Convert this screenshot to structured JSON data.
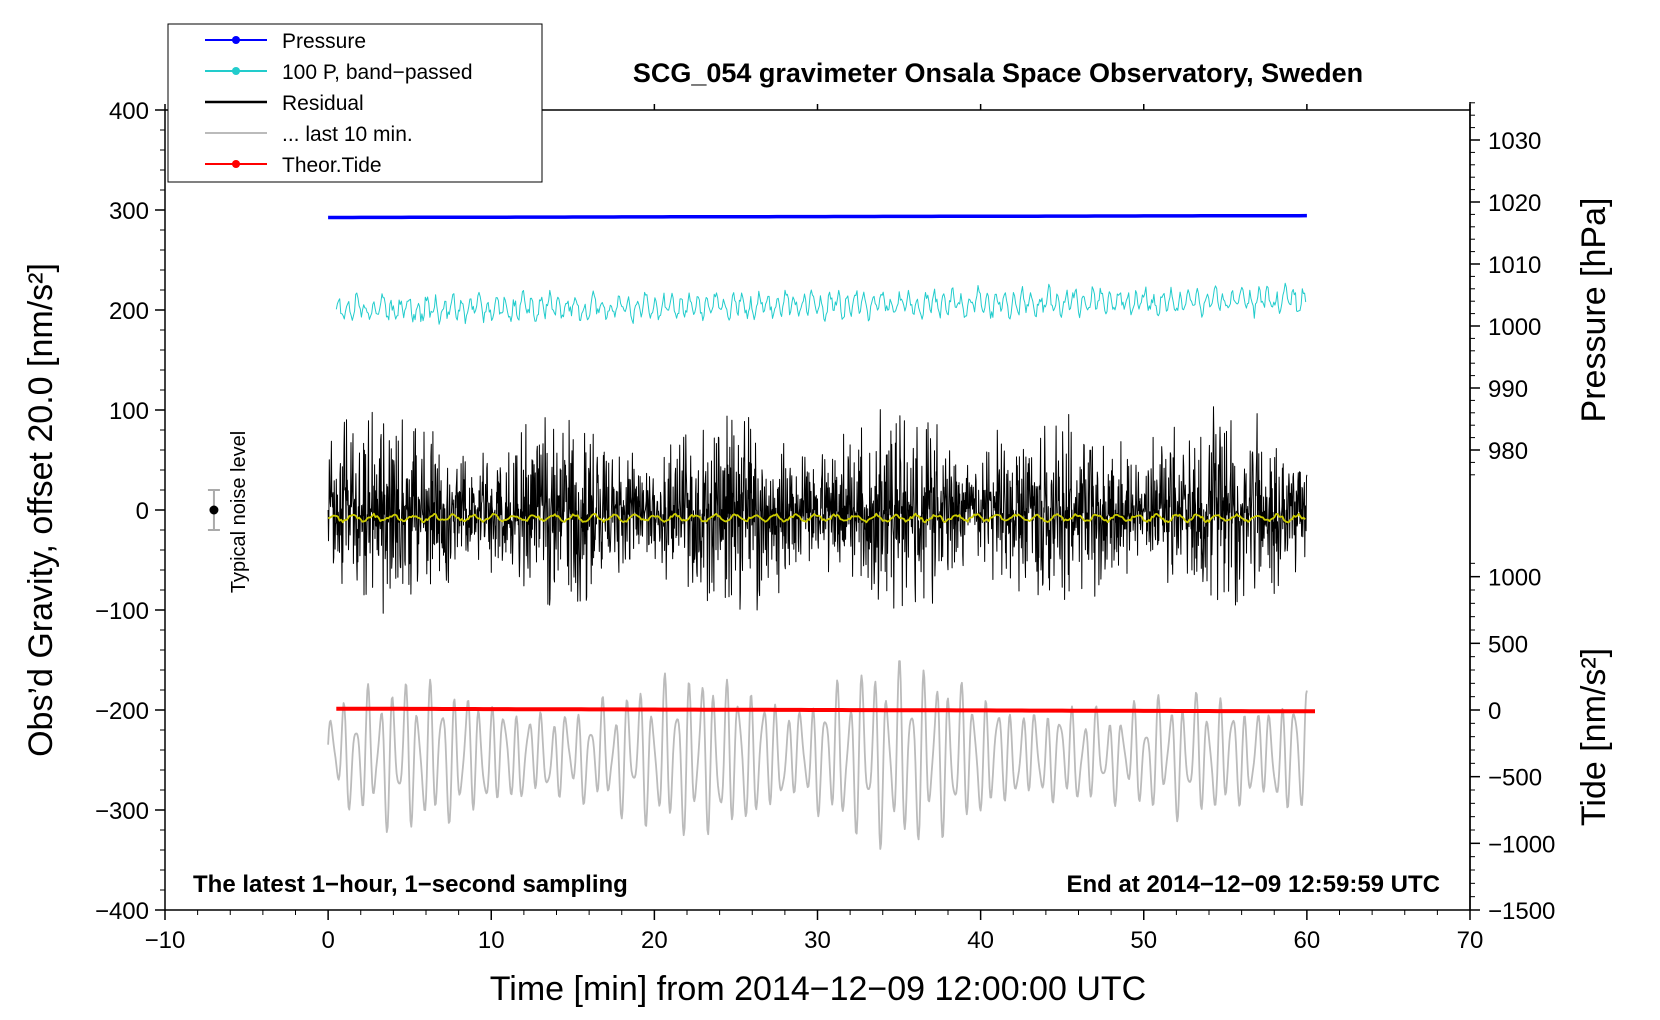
{
  "chart_data": {
    "type": "line",
    "title": "SCG_054 gravimeter Onsala Space Observatory, Sweden",
    "xlabel": "Time [min] from 2014−12−09 12:00:00 UTC",
    "ylabel_left": "Obs’d Gravity, offset 20.0 [nm/s²]",
    "ylabel_right_top": "Pressure [hPa]",
    "ylabel_right_bottom": "Tide [nm/s²]",
    "xlim": [
      -10,
      70
    ],
    "ylim_left": [
      -400,
      400
    ],
    "x_ticks": [
      -10,
      0,
      10,
      20,
      30,
      40,
      50,
      60,
      70
    ],
    "x_tick_labels": [
      "−10",
      "0",
      "10",
      "20",
      "30",
      "40",
      "50",
      "60",
      "70"
    ],
    "y_ticks_left": [
      400,
      300,
      200,
      100,
      0,
      -100,
      -200,
      -300,
      -400
    ],
    "y_tick_labels_left": [
      "400",
      "300",
      "200",
      "100",
      "0",
      "−100",
      "−200",
      "−300",
      "−400"
    ],
    "pressure_axis": {
      "ticks": [
        1030,
        1020,
        1010,
        1000,
        990,
        980
      ],
      "tick_labels": [
        "1030",
        "1020",
        "1010",
        "1000",
        "990",
        "980"
      ],
      "left_equivalent_at": [
        {
          "value": 1020,
          "left": 308
        },
        {
          "value": 980,
          "left": 60
        }
      ]
    },
    "tide_axis": {
      "ticks": [
        1000,
        500,
        0,
        -500,
        -1000,
        -1500
      ],
      "tick_labels": [
        "1000",
        "500",
        "0",
        "−500",
        "−1000",
        "−1500"
      ],
      "left_equivalent_at": [
        {
          "value": 0,
          "left": -200
        },
        {
          "value": -1500,
          "left": -400
        }
      ]
    },
    "legend": {
      "position": "top-left",
      "entries": [
        {
          "label": "Pressure",
          "color": "#0000ff",
          "style": "line-dot"
        },
        {
          "label": "100 P, band−passed",
          "color": "#22cccc",
          "style": "line-dot"
        },
        {
          "label": "Residual",
          "color": "#000000",
          "style": "line"
        },
        {
          "label": "... last 10 min.",
          "color": "#bbbbbb",
          "style": "line"
        },
        {
          "label": "Theor.Tide",
          "color": "#ff0000",
          "style": "line-dot"
        }
      ]
    },
    "series": [
      {
        "name": "Pressure",
        "color": "#0000ff",
        "x_range": [
          0,
          60
        ],
        "level_hPa": 1017.5,
        "trend_hPa": 0.3
      },
      {
        "name": "100 P, band−passed",
        "color": "#22cccc",
        "x_range": [
          0.5,
          60
        ],
        "mean_left": 200,
        "amplitude_left": 15,
        "trend_left": 10
      },
      {
        "name": "Residual",
        "color": "#000000",
        "x_range": [
          0,
          60
        ],
        "mean_left": 0,
        "amplitude_left": 90
      },
      {
        "name": "Residual (smoothed)",
        "color": "#cccc00",
        "x_range": [
          0,
          60
        ],
        "mean_left": -8,
        "amplitude_left": 3
      },
      {
        "name": "... last 10 min.",
        "color": "#bbbbbb",
        "x_range": [
          0,
          60
        ],
        "mean_left": -245,
        "amplitude_left": 70
      },
      {
        "name": "Theor.Tide",
        "color": "#ff0000",
        "x_range": [
          0.5,
          60.5
        ],
        "start_nm_s2": 10,
        "end_nm_s2": -10
      }
    ],
    "noise_marker": {
      "x": -7,
      "value": 0,
      "error": 20,
      "label": "Typical noise level"
    },
    "annotations": [
      {
        "text": "The latest 1−hour, 1−second sampling",
        "position": "bottom-left"
      },
      {
        "text": "End at 2014−12−09 12:59:59 UTC",
        "position": "bottom-right"
      }
    ]
  }
}
